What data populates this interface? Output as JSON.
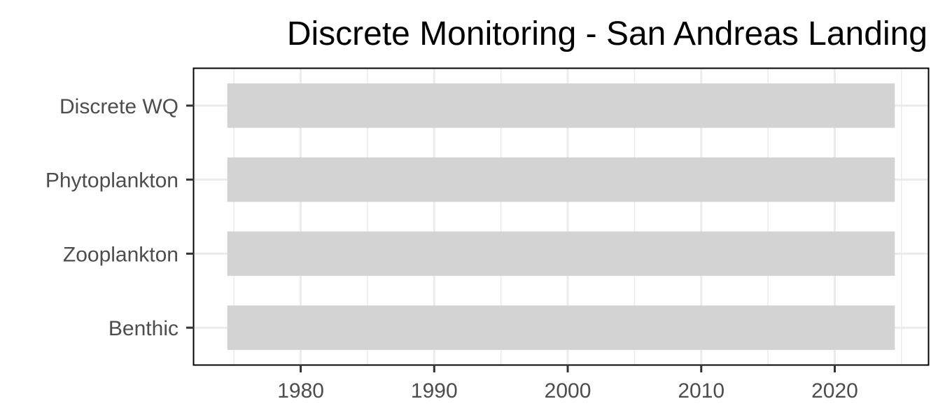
{
  "chart_data": {
    "type": "bar",
    "orientation": "horizontal",
    "title": "Discrete Monitoring - San Andreas Landing",
    "xlabel": "",
    "ylabel": "",
    "categories": [
      "Discrete WQ",
      "Phytoplankton",
      "Zooplankton",
      "Benthic"
    ],
    "ranges": [
      {
        "category": "Discrete WQ",
        "start": 1974.5,
        "end": 2024.5
      },
      {
        "category": "Phytoplankton",
        "start": 1974.5,
        "end": 2024.5
      },
      {
        "category": "Zooplankton",
        "start": 1974.5,
        "end": 2024.5
      },
      {
        "category": "Benthic",
        "start": 1974.5,
        "end": 2024.5
      }
    ],
    "xlim": [
      1972,
      2027
    ],
    "xticks": [
      1980,
      1990,
      2000,
      2010,
      2020
    ],
    "xtick_labels": [
      "1980",
      "1990",
      "2000",
      "2010",
      "2020"
    ],
    "grid": true,
    "legend": "none",
    "colors": {
      "bar": "#d3d3d3",
      "grid": "#ebebeb",
      "panel_border": "#000000",
      "tick_text": "#4d4d4d",
      "axis_ticks": "#333333",
      "title": "#000000"
    }
  }
}
